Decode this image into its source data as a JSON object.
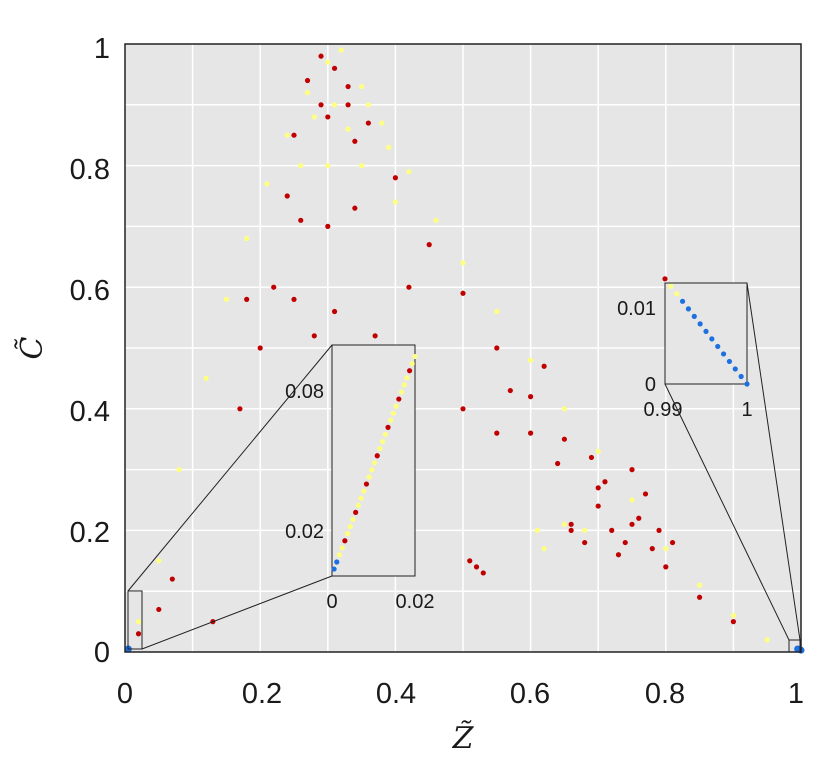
{
  "chart_data": {
    "type": "scatter",
    "xlabel": "Z̃",
    "ylabel": "C̃",
    "xlim": [
      0,
      1
    ],
    "ylim": [
      0,
      1
    ],
    "grid": true,
    "background": "#e6e6e6",
    "grid_color": "#ffffff",
    "x_ticks": [
      "0",
      "0.2",
      "0.4",
      "0.6",
      "0.8",
      "1"
    ],
    "y_ticks": [
      "0",
      "0.2",
      "0.4",
      "0.6",
      "0.8",
      "1"
    ],
    "series": [
      {
        "color": "#c00000",
        "points": [
          [
            0.17,
            0.4
          ],
          [
            0.2,
            0.5
          ],
          [
            0.22,
            0.6
          ],
          [
            0.24,
            0.75
          ],
          [
            0.25,
            0.85
          ],
          [
            0.27,
            0.94
          ],
          [
            0.29,
            0.98
          ],
          [
            0.31,
            0.96
          ],
          [
            0.33,
            0.93
          ],
          [
            0.36,
            0.87
          ],
          [
            0.4,
            0.78
          ],
          [
            0.45,
            0.67
          ],
          [
            0.5,
            0.59
          ],
          [
            0.55,
            0.5
          ],
          [
            0.6,
            0.42
          ],
          [
            0.65,
            0.35
          ],
          [
            0.7,
            0.27
          ],
          [
            0.75,
            0.21
          ],
          [
            0.8,
            0.14
          ],
          [
            0.85,
            0.09
          ],
          [
            0.9,
            0.05
          ],
          [
            0.7,
            0.24
          ],
          [
            0.72,
            0.2
          ],
          [
            0.74,
            0.18
          ],
          [
            0.76,
            0.22
          ],
          [
            0.78,
            0.17
          ],
          [
            0.73,
            0.16
          ],
          [
            0.77,
            0.26
          ],
          [
            0.71,
            0.28
          ],
          [
            0.75,
            0.3
          ],
          [
            0.69,
            0.32
          ],
          [
            0.79,
            0.2
          ],
          [
            0.81,
            0.18
          ],
          [
            0.68,
            0.18
          ],
          [
            0.66,
            0.2
          ],
          [
            0.13,
            0.05
          ],
          [
            0.05,
            0.07
          ],
          [
            0.02,
            0.03
          ],
          [
            0.07,
            0.12
          ],
          [
            0.18,
            0.58
          ],
          [
            0.3,
            0.7
          ],
          [
            0.25,
            0.58
          ],
          [
            0.31,
            0.56
          ],
          [
            0.28,
            0.52
          ],
          [
            0.34,
            0.73
          ],
          [
            0.26,
            0.71
          ],
          [
            0.37,
            0.52
          ],
          [
            0.42,
            0.6
          ],
          [
            0.4,
            0.45
          ],
          [
            0.5,
            0.4
          ],
          [
            0.52,
            0.14
          ],
          [
            0.53,
            0.13
          ],
          [
            0.51,
            0.15
          ],
          [
            0.62,
            0.47
          ],
          [
            0.6,
            0.36
          ],
          [
            0.57,
            0.43
          ],
          [
            0.55,
            0.36
          ],
          [
            0.66,
            0.21
          ],
          [
            0.64,
            0.31
          ],
          [
            0.3,
            0.88
          ],
          [
            0.33,
            0.9
          ],
          [
            0.29,
            0.9
          ],
          [
            0.34,
            0.84
          ]
        ]
      },
      {
        "color": "#ffff80",
        "points": [
          [
            0.02,
            0.05
          ],
          [
            0.05,
            0.15
          ],
          [
            0.08,
            0.3
          ],
          [
            0.12,
            0.45
          ],
          [
            0.15,
            0.58
          ],
          [
            0.18,
            0.68
          ],
          [
            0.21,
            0.77
          ],
          [
            0.24,
            0.85
          ],
          [
            0.27,
            0.92
          ],
          [
            0.3,
            0.97
          ],
          [
            0.32,
            0.99
          ],
          [
            0.35,
            0.93
          ],
          [
            0.38,
            0.87
          ],
          [
            0.42,
            0.79
          ],
          [
            0.46,
            0.71
          ],
          [
            0.5,
            0.64
          ],
          [
            0.55,
            0.56
          ],
          [
            0.6,
            0.48
          ],
          [
            0.65,
            0.4
          ],
          [
            0.7,
            0.33
          ],
          [
            0.75,
            0.25
          ],
          [
            0.8,
            0.17
          ],
          [
            0.85,
            0.11
          ],
          [
            0.9,
            0.06
          ],
          [
            0.95,
            0.02
          ],
          [
            0.28,
            0.88
          ],
          [
            0.31,
            0.9
          ],
          [
            0.33,
            0.86
          ],
          [
            0.36,
            0.9
          ],
          [
            0.39,
            0.83
          ],
          [
            0.26,
            0.8
          ],
          [
            0.3,
            0.8
          ],
          [
            0.61,
            0.2
          ],
          [
            0.65,
            0.21
          ],
          [
            0.68,
            0.2
          ],
          [
            0.62,
            0.17
          ],
          [
            0.4,
            0.74
          ],
          [
            0.35,
            0.8
          ]
        ]
      },
      {
        "color": "#1e6fe0",
        "points": [
          [
            0.005,
            0.005
          ],
          [
            0.995,
            0.005
          ],
          [
            1,
            0.003
          ]
        ]
      }
    ],
    "insets": [
      {
        "xlim": [
          0,
          0.02
        ],
        "ylim": [
          0,
          0.1
        ],
        "x_ticks": [
          "0",
          "0.02"
        ],
        "y_ticks": [
          "0.02",
          "0.08"
        ]
      },
      {
        "xlim": [
          0.99,
          1
        ],
        "ylim": [
          0,
          0.012
        ],
        "x_ticks": [
          "0.99",
          "1"
        ],
        "y_ticks": [
          "0",
          "0.01"
        ]
      }
    ]
  }
}
